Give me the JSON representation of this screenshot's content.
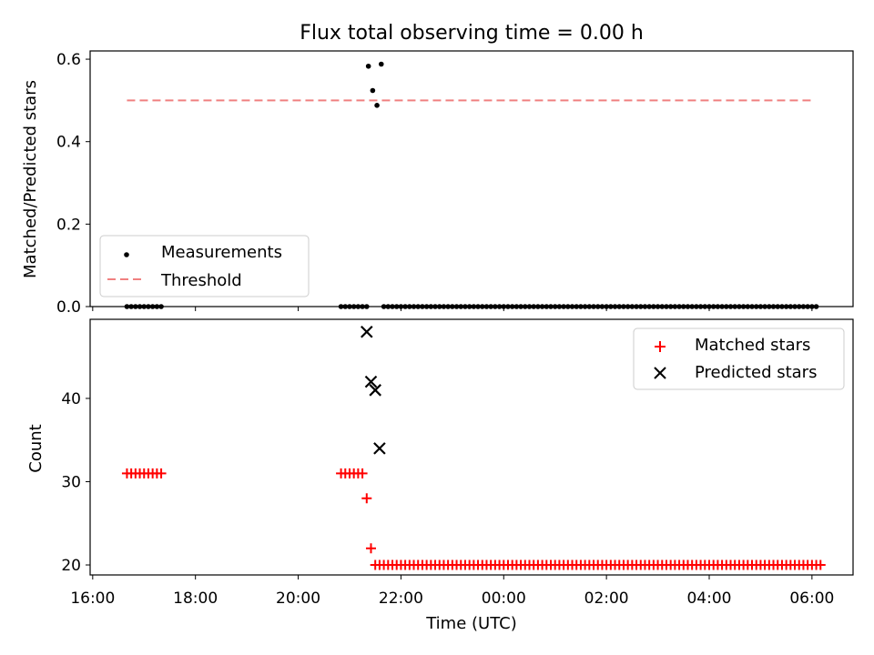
{
  "chart_data": {
    "title": "Flux total observing time = 0.00 h",
    "x_axis": {
      "label": "Time (UTC)",
      "ticks": [
        "16:00",
        "18:00",
        "20:00",
        "22:00",
        "00:00",
        "02:00",
        "04:00",
        "06:00"
      ],
      "range_hours": [
        15.95,
        30.8
      ]
    },
    "subplots": [
      {
        "type": "scatter",
        "ylabel": "Matched/Predicted stars",
        "ylim": [
          0.0,
          0.62
        ],
        "yticks": [
          "0.0",
          "0.2",
          "0.4",
          "0.6"
        ],
        "legend_placement": "lower-left",
        "series": [
          {
            "name": "Measurements",
            "marker": "dot",
            "color": "#000000",
            "segments": [
              {
                "x_start": "16:40",
                "x_end": "17:20",
                "step_min": 5,
                "y": 0.0
              },
              {
                "x_start": "20:50",
                "x_end": "21:20",
                "step_min": 5,
                "y": 0.0
              },
              {
                "x_start": "21:40",
                "x_end": "06:05",
                "step_min": 5,
                "y": 0.0
              }
            ],
            "points": [
              {
                "x": "21:22",
                "y": 0.583
              },
              {
                "x": "21:27",
                "y": 0.524
              },
              {
                "x": "21:32",
                "y": 0.488
              },
              {
                "x": "21:37",
                "y": 0.588
              }
            ]
          },
          {
            "name": "Threshold",
            "style": "dashed",
            "color": "#f08080",
            "x": [
              "16:40",
              "06:00"
            ],
            "y": [
              0.5,
              0.5
            ]
          }
        ]
      },
      {
        "type": "scatter",
        "ylabel": "Count",
        "ylim": [
          18.8,
          49.5
        ],
        "yticks": [
          "20",
          "30",
          "40"
        ],
        "legend_placement": "top-right",
        "series": [
          {
            "name": "Matched stars",
            "marker": "plus",
            "color": "#ff0000",
            "segments": [
              {
                "x_start": "16:40",
                "x_end": "17:20",
                "step_min": 5,
                "y": 31
              },
              {
                "x_start": "20:50",
                "x_end": "21:15",
                "step_min": 5,
                "y": 31
              },
              {
                "x_start": "21:30",
                "x_end": "06:10",
                "step_min": 5,
                "y": 20
              }
            ],
            "points": [
              {
                "x": "21:20",
                "y": 28
              },
              {
                "x": "21:25",
                "y": 22
              }
            ]
          },
          {
            "name": "Predicted stars",
            "marker": "x",
            "color": "#000000",
            "points": [
              {
                "x": "21:20",
                "y": 48
              },
              {
                "x": "21:25",
                "y": 42
              },
              {
                "x": "21:30",
                "y": 41
              },
              {
                "x": "21:35",
                "y": 34
              }
            ]
          }
        ]
      }
    ]
  }
}
